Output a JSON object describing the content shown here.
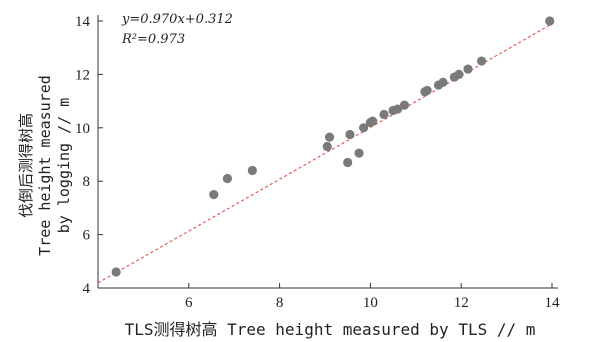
{
  "chart_data": {
    "type": "scatter",
    "xlabel": "TLS测得树高 Tree height measured by TLS // m",
    "ylabel_lines": [
      "伐倒后测得树高",
      "Tree height measured",
      "by logging // m"
    ],
    "annotation": {
      "equation": "y=0.970x+0.312",
      "r2_label": "R²=0.973"
    },
    "xlim": [
      4,
      14
    ],
    "ylim": [
      4,
      14
    ],
    "xticks": [
      6,
      8,
      10,
      12,
      14
    ],
    "yticks": [
      4,
      6,
      8,
      10,
      12,
      14
    ],
    "grid": false,
    "fit_line": {
      "slope": 0.97,
      "intercept": 0.312
    },
    "points_color": "#7a7a7a",
    "fit_color": "#d9534f",
    "points": [
      {
        "x": 4.4,
        "y": 4.6
      },
      {
        "x": 6.55,
        "y": 7.5
      },
      {
        "x": 6.85,
        "y": 8.1
      },
      {
        "x": 7.4,
        "y": 8.4
      },
      {
        "x": 9.05,
        "y": 9.3
      },
      {
        "x": 9.1,
        "y": 9.65
      },
      {
        "x": 9.5,
        "y": 8.7
      },
      {
        "x": 9.55,
        "y": 9.75
      },
      {
        "x": 9.75,
        "y": 9.05
      },
      {
        "x": 9.85,
        "y": 10.0
      },
      {
        "x": 10.0,
        "y": 10.2
      },
      {
        "x": 10.05,
        "y": 10.25
      },
      {
        "x": 10.3,
        "y": 10.5
      },
      {
        "x": 10.5,
        "y": 10.65
      },
      {
        "x": 10.6,
        "y": 10.7
      },
      {
        "x": 10.75,
        "y": 10.85
      },
      {
        "x": 11.2,
        "y": 11.35
      },
      {
        "x": 11.25,
        "y": 11.4
      },
      {
        "x": 11.5,
        "y": 11.6
      },
      {
        "x": 11.6,
        "y": 11.7
      },
      {
        "x": 11.85,
        "y": 11.9
      },
      {
        "x": 11.95,
        "y": 12.0
      },
      {
        "x": 12.15,
        "y": 12.2
      },
      {
        "x": 12.45,
        "y": 12.5
      },
      {
        "x": 13.95,
        "y": 14.0
      }
    ]
  }
}
